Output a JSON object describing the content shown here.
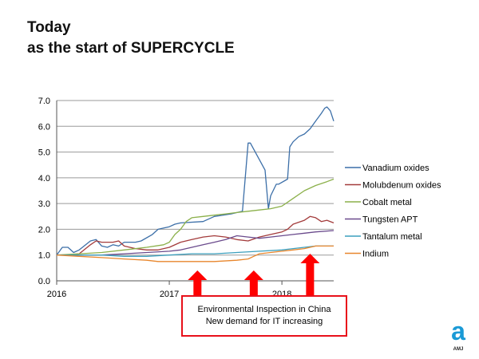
{
  "title": {
    "line1": "Today",
    "line2": "as the start of SUPERCYCLE"
  },
  "callout": {
    "line1": "Environmental Inspection in China",
    "line2": "New demand for IT increasing"
  },
  "logo": {
    "mark": "a",
    "text": "AMJ",
    "color": "#1a9ad6"
  },
  "colors": {
    "arrow": "#ff0000",
    "callout_border": "#e8101a"
  },
  "chart_data": {
    "type": "line",
    "xlim": [
      2016.0,
      2018.46
    ],
    "ylim": [
      0,
      7
    ],
    "x_ticks": [
      {
        "label": "2016",
        "value": 2016.0
      },
      {
        "label": "2017",
        "value": 2017.0
      },
      {
        "label": "2018",
        "value": 2018.0
      }
    ],
    "y_ticks": [
      "0.0",
      "1.0",
      "2.0",
      "3.0",
      "4.0",
      "5.0",
      "6.0",
      "7.0"
    ],
    "y_tick_values": [
      0,
      1,
      2,
      3,
      4,
      5,
      6,
      7
    ],
    "grid": "horizontal",
    "legend_position": "right",
    "annotations": [
      {
        "type": "up-arrow",
        "x": 2017.25
      },
      {
        "type": "up-arrow",
        "x": 2017.75
      },
      {
        "type": "up-arrow",
        "x": 2018.25
      }
    ],
    "series": [
      {
        "name": "Vanadium oxides",
        "color": "#3c6fa8",
        "x": [
          2016.0,
          2016.05,
          2016.1,
          2016.15,
          2016.2,
          2016.3,
          2016.35,
          2016.4,
          2016.45,
          2016.5,
          2016.55,
          2016.6,
          2016.7,
          2016.75,
          2016.85,
          2016.9,
          2017.0,
          2017.05,
          2017.1,
          2017.3,
          2017.4,
          2017.55,
          2017.65,
          2017.7,
          2017.72,
          2017.85,
          2017.88,
          2017.9,
          2017.95,
          2017.97,
          2018.05,
          2018.07,
          2018.1,
          2018.15,
          2018.2,
          2018.25,
          2018.3,
          2018.35,
          2018.38,
          2018.4,
          2018.43,
          2018.46
        ],
        "y": [
          1.0,
          1.3,
          1.3,
          1.1,
          1.2,
          1.55,
          1.6,
          1.35,
          1.3,
          1.4,
          1.35,
          1.5,
          1.5,
          1.55,
          1.8,
          2.0,
          2.1,
          2.2,
          2.25,
          2.3,
          2.5,
          2.6,
          2.7,
          5.35,
          5.35,
          4.3,
          2.8,
          3.3,
          3.75,
          3.75,
          3.95,
          5.2,
          5.4,
          5.6,
          5.7,
          5.9,
          6.2,
          6.5,
          6.7,
          6.75,
          6.6,
          6.2
        ]
      },
      {
        "name": "Molubdenum oxides",
        "color": "#a33b3b",
        "x": [
          2016.0,
          2016.1,
          2016.2,
          2016.3,
          2016.35,
          2016.4,
          2016.5,
          2016.55,
          2016.6,
          2016.7,
          2016.8,
          2016.9,
          2017.0,
          2017.1,
          2017.2,
          2017.3,
          2017.4,
          2017.5,
          2017.6,
          2017.7,
          2017.8,
          2017.9,
          2018.0,
          2018.05,
          2018.1,
          2018.2,
          2018.25,
          2018.3,
          2018.35,
          2018.4,
          2018.46
        ],
        "y": [
          1.0,
          1.0,
          1.05,
          1.4,
          1.55,
          1.5,
          1.5,
          1.55,
          1.35,
          1.25,
          1.2,
          1.2,
          1.3,
          1.5,
          1.6,
          1.7,
          1.75,
          1.7,
          1.6,
          1.55,
          1.7,
          1.8,
          1.9,
          2.0,
          2.2,
          2.35,
          2.5,
          2.45,
          2.3,
          2.35,
          2.25
        ]
      },
      {
        "name": "Cobalt metal",
        "color": "#8bb04a",
        "x": [
          2016.0,
          2016.2,
          2016.4,
          2016.6,
          2016.8,
          2016.95,
          2017.0,
          2017.05,
          2017.1,
          2017.15,
          2017.2,
          2017.3,
          2017.4,
          2017.5,
          2017.6,
          2017.7,
          2017.8,
          2017.9,
          2018.0,
          2018.1,
          2018.2,
          2018.3,
          2018.4,
          2018.46
        ],
        "y": [
          1.0,
          1.05,
          1.1,
          1.2,
          1.3,
          1.4,
          1.5,
          1.8,
          2.0,
          2.3,
          2.45,
          2.5,
          2.55,
          2.6,
          2.65,
          2.7,
          2.75,
          2.8,
          2.9,
          3.2,
          3.5,
          3.7,
          3.85,
          3.95
        ]
      },
      {
        "name": "Tungsten APT",
        "color": "#6a4a8c",
        "x": [
          2016.0,
          2016.2,
          2016.4,
          2016.6,
          2016.8,
          2017.0,
          2017.1,
          2017.2,
          2017.3,
          2017.4,
          2017.5,
          2017.6,
          2017.7,
          2017.8,
          2017.9,
          2018.0,
          2018.1,
          2018.2,
          2018.3,
          2018.46
        ],
        "y": [
          1.0,
          1.0,
          1.0,
          1.05,
          1.1,
          1.15,
          1.2,
          1.3,
          1.4,
          1.5,
          1.6,
          1.75,
          1.7,
          1.65,
          1.7,
          1.75,
          1.8,
          1.85,
          1.9,
          1.95
        ]
      },
      {
        "name": "Tantalum metal",
        "color": "#3c9fbd",
        "x": [
          2016.0,
          2016.2,
          2016.4,
          2016.6,
          2016.8,
          2017.0,
          2017.2,
          2017.4,
          2017.6,
          2017.8,
          2018.0,
          2018.1,
          2018.2,
          2018.3,
          2018.46
        ],
        "y": [
          1.0,
          1.0,
          1.0,
          0.95,
          0.95,
          1.0,
          1.05,
          1.05,
          1.1,
          1.15,
          1.2,
          1.25,
          1.3,
          1.35,
          1.35
        ]
      },
      {
        "name": "Indium",
        "color": "#e8862c",
        "x": [
          2016.0,
          2016.2,
          2016.4,
          2016.6,
          2016.8,
          2016.9,
          2017.0,
          2017.2,
          2017.4,
          2017.6,
          2017.7,
          2017.75,
          2017.8,
          2017.9,
          2018.0,
          2018.1,
          2018.2,
          2018.3,
          2018.46
        ],
        "y": [
          1.0,
          0.95,
          0.9,
          0.85,
          0.8,
          0.75,
          0.75,
          0.75,
          0.75,
          0.8,
          0.85,
          0.95,
          1.05,
          1.1,
          1.15,
          1.2,
          1.25,
          1.35,
          1.35
        ]
      }
    ]
  }
}
